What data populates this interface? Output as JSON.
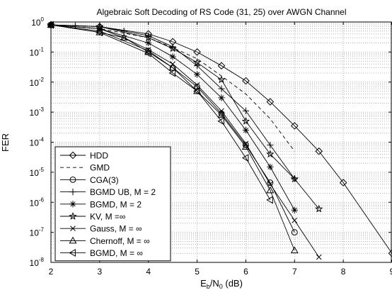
{
  "chart_data": {
    "type": "line",
    "title": "Algebraic Soft Decoding of RS Code (31, 25) over AWGN Channel",
    "xlabel_base": "E",
    "xlabel_sub1": "b",
    "xlabel_mid": "/N",
    "xlabel_sub2": "0",
    "xlabel_unit": " (dB)",
    "ylabel": "FER",
    "xlim": [
      2,
      9
    ],
    "ylim_exp": [
      -8,
      0
    ],
    "y_scale": "log",
    "grid": "dotted",
    "legend_position": "bottom-left",
    "x_ticks": [
      "2",
      "3",
      "4",
      "5",
      "6",
      "7",
      "8",
      "9"
    ],
    "y_tick_base": "10",
    "y_tick_exps": [
      "0",
      "-1",
      "-2",
      "-3",
      "-4",
      "-5",
      "-6",
      "-7",
      "-8"
    ],
    "series": [
      {
        "name": "HDD",
        "marker": "diamond",
        "dash": "solid",
        "x": [
          2,
          3,
          4,
          4.5,
          5,
          5.5,
          6,
          6.5,
          7,
          7.5,
          8,
          9
        ],
        "y": [
          0.8,
          0.7,
          0.4,
          0.22,
          0.1,
          0.035,
          0.011,
          0.0022,
          0.00035,
          5e-05,
          4.5e-06,
          2e-08
        ]
      },
      {
        "name": "GMD",
        "marker": "none",
        "dash": "dashed",
        "x": [
          2,
          3,
          4,
          4.5,
          5,
          5.5,
          6,
          6.5,
          7
        ],
        "y": [
          0.8,
          0.6,
          0.3,
          0.14,
          0.06,
          0.016,
          0.004,
          0.0006,
          5e-05
        ]
      },
      {
        "name": "CGA(3)",
        "marker": "circle",
        "dash": "solid",
        "x": [
          2,
          3,
          4,
          4.5,
          5,
          5.5,
          6,
          6.5,
          7
        ],
        "y": [
          0.8,
          0.5,
          0.11,
          0.03,
          0.007,
          0.0009,
          8e-05,
          4.5e-06,
          1e-07
        ]
      },
      {
        "name": "BGMD UB, M = 2",
        "marker": "plus",
        "dash": "solid",
        "x": [
          2,
          2.5,
          3,
          3.5,
          4,
          4.5,
          5,
          5.5,
          6,
          6.5,
          7
        ],
        "y": [
          0.8,
          0.75,
          0.7,
          0.5,
          0.35,
          0.15,
          0.035,
          0.006,
          0.0011,
          8e-05,
          6e-06
        ]
      },
      {
        "name": "BGMD, M = 2",
        "marker": "asterisk",
        "dash": "solid",
        "x": [
          2,
          3,
          4,
          4.5,
          5,
          5.5,
          6,
          6.5,
          7
        ],
        "y": [
          0.8,
          0.6,
          0.2,
          0.07,
          0.018,
          0.003,
          0.00025,
          1.5e-05,
          5.5e-07
        ]
      },
      {
        "name": "KV, M =∞",
        "marker": "star",
        "dash": "solid",
        "x": [
          2,
          3,
          4,
          4.5,
          5,
          5.5,
          6,
          6.5,
          7,
          7.5
        ],
        "y": [
          0.8,
          0.7,
          0.3,
          0.13,
          0.045,
          0.012,
          0.0005,
          4e-05,
          6e-06,
          6e-07
        ]
      },
      {
        "name": "Gauss, M = ∞",
        "marker": "x",
        "dash": "solid",
        "x": [
          2,
          3,
          3.5,
          4,
          4.5,
          5,
          5.5,
          6,
          6.5,
          7,
          7.5
        ],
        "y": [
          0.8,
          0.6,
          0.3,
          0.12,
          0.04,
          0.008,
          0.0011,
          9e-05,
          4e-06,
          2.5e-07,
          1.5e-08
        ]
      },
      {
        "name": "Chernoff, M = ∞",
        "marker": "triangle-up",
        "dash": "solid",
        "x": [
          2,
          3,
          3.5,
          4,
          4.5,
          5,
          5.5,
          6,
          6.5,
          7
        ],
        "y": [
          0.8,
          0.45,
          0.3,
          0.1,
          0.03,
          0.005,
          0.0008,
          7e-05,
          2.5e-06,
          2.5e-08
        ]
      },
      {
        "name": "BGMD, M = ∞",
        "marker": "triangle-left",
        "dash": "solid",
        "x": [
          2,
          3,
          4,
          4.5,
          5,
          5.5,
          6,
          6.5
        ],
        "y": [
          0.8,
          0.45,
          0.09,
          0.02,
          0.005,
          0.0005,
          3e-05,
          1.2e-06
        ]
      }
    ]
  }
}
